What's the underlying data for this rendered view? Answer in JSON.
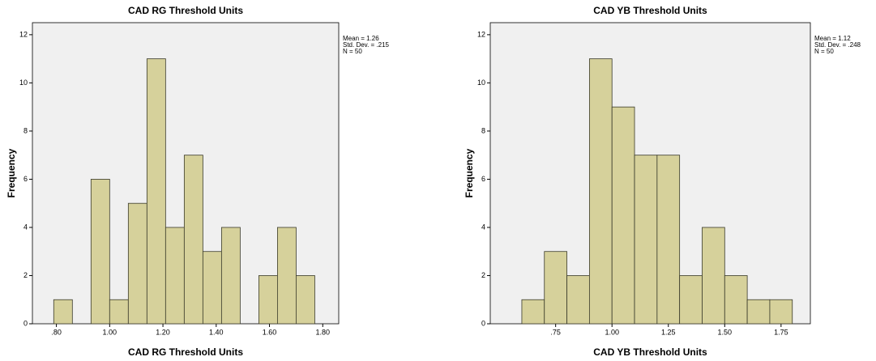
{
  "chart_data": [
    {
      "type": "histogram",
      "title": "CAD RG Threshold Units",
      "xlabel": "CAD RG Threshold Units",
      "ylabel": "Frequency",
      "annotations": [
        "Mean = 1.26",
        "Std. Dev. = .215",
        "N = 50"
      ],
      "bins": [
        0.79,
        0.86,
        0.93,
        1.0,
        1.07,
        1.14,
        1.21,
        1.28,
        1.35,
        1.42,
        1.49,
        1.56,
        1.63,
        1.7,
        1.77
      ],
      "values": [
        1,
        0,
        6,
        1,
        5,
        11,
        4,
        7,
        3,
        4,
        0,
        2,
        4,
        2
      ],
      "color": "#d6d19b",
      "xlim": [
        0.71,
        1.86
      ],
      "ylim": [
        0,
        12.5
      ],
      "xticks": [
        {
          "value": 0.8,
          "label": ".80"
        },
        {
          "value": 1.0,
          "label": "1.00"
        },
        {
          "value": 1.2,
          "label": "1.20"
        },
        {
          "value": 1.4,
          "label": "1.40"
        },
        {
          "value": 1.6,
          "label": "1.60"
        },
        {
          "value": 1.8,
          "label": "1.80"
        }
      ],
      "yticks": [
        0,
        2,
        4,
        6,
        8,
        10,
        12
      ]
    },
    {
      "type": "histogram",
      "title": "CAD YB Threshold Units",
      "xlabel": "CAD YB Threshold Units",
      "ylabel": "Frequency",
      "annotations": [
        "Mean = 1.12",
        "Std. Dev. = .248",
        "N = 50"
      ],
      "bins": [
        0.6,
        0.7,
        0.8,
        0.9,
        1.0,
        1.1,
        1.2,
        1.3,
        1.4,
        1.5,
        1.6,
        1.7,
        1.8
      ],
      "values": [
        1,
        3,
        2,
        11,
        9,
        7,
        7,
        2,
        4,
        2,
        1,
        1
      ],
      "color": "#d6d19b",
      "xlim": [
        0.46,
        1.88
      ],
      "ylim": [
        0,
        12.5
      ],
      "xticks": [
        {
          "value": 0.75,
          "label": ".75"
        },
        {
          "value": 1.0,
          "label": "1.00"
        },
        {
          "value": 1.25,
          "label": "1.25"
        },
        {
          "value": 1.5,
          "label": "1.50"
        },
        {
          "value": 1.75,
          "label": "1.75"
        }
      ],
      "yticks": [
        0,
        2,
        4,
        6,
        8,
        10,
        12
      ]
    }
  ]
}
